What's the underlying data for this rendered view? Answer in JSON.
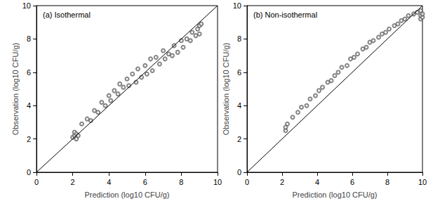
{
  "chart_data": [
    {
      "type": "scatter",
      "title": "(a) Isothermal",
      "x_label": "Prediction (log10 CFU/g)",
      "y_label": "Observation (log10 CFU/g)",
      "xlim": [
        0,
        10
      ],
      "ylim": [
        0,
        10
      ],
      "xticks": [
        0,
        2,
        4,
        6,
        8,
        10
      ],
      "yticks": [
        0,
        2,
        4,
        6,
        8,
        10
      ],
      "grid": false,
      "series": [
        {
          "type": "scatter",
          "marker": "circle",
          "color": "#666666",
          "x": [
            2.0,
            2.1,
            2.1,
            2.2,
            2.2,
            2.3,
            2.5,
            2.8,
            3.0,
            3.2,
            3.4,
            3.6,
            3.8,
            4.0,
            4.1,
            4.3,
            4.5,
            4.6,
            4.8,
            5.0,
            5.1,
            5.3,
            5.5,
            5.6,
            5.8,
            6.0,
            6.1,
            6.3,
            6.4,
            6.6,
            6.8,
            7.0,
            7.1,
            7.3,
            7.5,
            7.6,
            7.8,
            8.0,
            8.1,
            8.3,
            8.5,
            8.6,
            8.8,
            8.9,
            9.0,
            9.0,
            9.1
          ],
          "values": [
            2.1,
            2.2,
            2.4,
            2.0,
            2.3,
            2.2,
            2.9,
            3.2,
            3.1,
            3.7,
            3.6,
            4.2,
            4.0,
            4.6,
            4.3,
            4.9,
            4.7,
            5.3,
            5.1,
            5.6,
            5.2,
            5.9,
            5.4,
            6.2,
            5.7,
            6.4,
            5.9,
            6.8,
            6.1,
            6.9,
            6.5,
            7.3,
            6.8,
            7.1,
            7.0,
            7.6,
            7.2,
            7.9,
            7.5,
            8.0,
            7.9,
            8.4,
            8.2,
            8.6,
            8.8,
            8.3,
            8.9
          ]
        },
        {
          "type": "line",
          "line_style": "solid",
          "color": "#000000",
          "x": [
            0,
            10
          ],
          "values": [
            0,
            10
          ]
        }
      ]
    },
    {
      "type": "scatter",
      "title": "(b) Non-isothermal",
      "x_label": "Prediction (log10 CFU/g)",
      "y_label": "Observation (log10 CFU/g)",
      "xlim": [
        0,
        10
      ],
      "ylim": [
        0,
        10
      ],
      "xticks": [
        0,
        2,
        4,
        6,
        8,
        10
      ],
      "yticks": [
        0,
        2,
        4,
        6,
        8,
        10
      ],
      "grid": false,
      "series": [
        {
          "type": "scatter",
          "marker": "circle",
          "color": "#666666",
          "x": [
            2.2,
            2.2,
            2.3,
            2.6,
            2.9,
            3.1,
            3.4,
            3.6,
            3.9,
            4.1,
            4.3,
            4.6,
            4.8,
            5.0,
            5.2,
            5.4,
            5.7,
            5.9,
            6.1,
            6.3,
            6.6,
            6.8,
            7.0,
            7.2,
            7.5,
            7.7,
            7.9,
            8.1,
            8.4,
            8.6,
            8.8,
            9.0,
            9.2,
            9.5,
            9.7,
            9.9,
            9.9,
            9.9,
            10.0,
            10.0
          ],
          "values": [
            2.5,
            2.7,
            2.9,
            3.3,
            3.6,
            3.9,
            4.0,
            4.4,
            4.6,
            4.9,
            5.1,
            5.4,
            5.5,
            5.8,
            6.0,
            6.3,
            6.4,
            6.8,
            6.9,
            7.1,
            7.4,
            7.5,
            7.8,
            7.9,
            8.1,
            8.3,
            8.4,
            8.6,
            8.8,
            8.9,
            9.1,
            9.2,
            9.4,
            9.5,
            9.6,
            9.2,
            9.4,
            9.7,
            9.3,
            9.5
          ]
        },
        {
          "type": "line",
          "line_style": "solid",
          "color": "#000000",
          "x": [
            0,
            10
          ],
          "values": [
            0,
            10
          ]
        }
      ]
    }
  ]
}
